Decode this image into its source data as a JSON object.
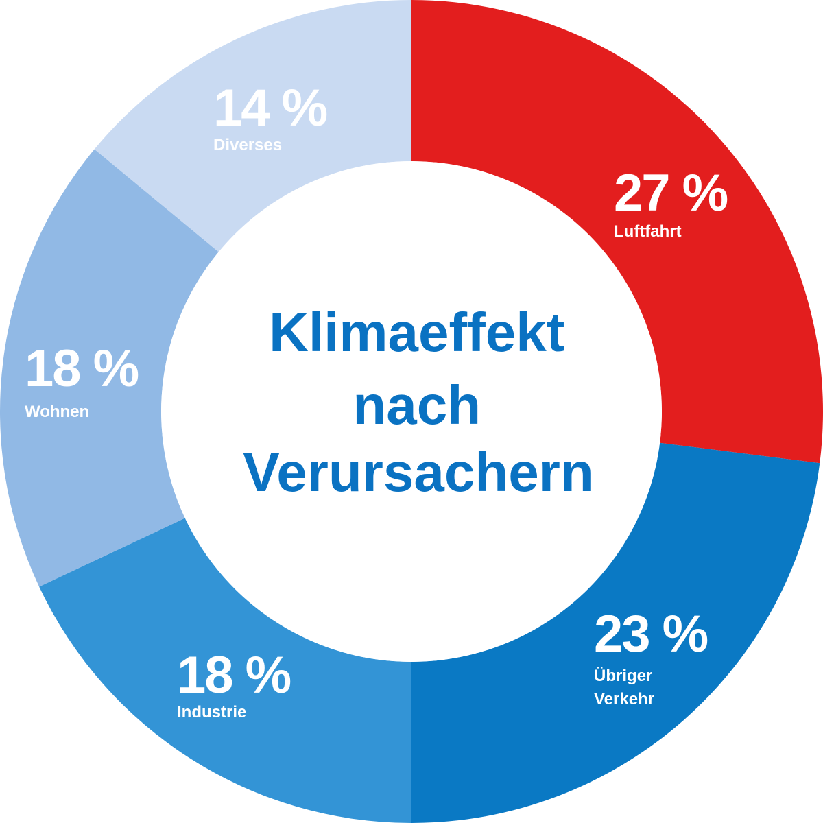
{
  "chart_data": {
    "type": "pie",
    "title_lines": [
      "Klimaeffekt",
      "nach",
      "Verursachern"
    ],
    "unit": "%",
    "slices": [
      {
        "label_lines": [
          "Luftfahrt"
        ],
        "value": 27,
        "value_text": "27 %",
        "color": "#e31e1e"
      },
      {
        "label_lines": [
          "Übriger",
          "Verkehr"
        ],
        "value": 23,
        "value_text": "23 %",
        "color": "#0a79c4"
      },
      {
        "label_lines": [
          "Industrie"
        ],
        "value": 18,
        "value_text": "18 %",
        "color": "#3394d6"
      },
      {
        "label_lines": [
          "Wohnen"
        ],
        "value": 18,
        "value_text": "18 %",
        "color": "#91b9e5"
      },
      {
        "label_lines": [
          "Diverses"
        ],
        "value": 14,
        "value_text": "14 %",
        "color": "#c9daf2"
      }
    ]
  }
}
